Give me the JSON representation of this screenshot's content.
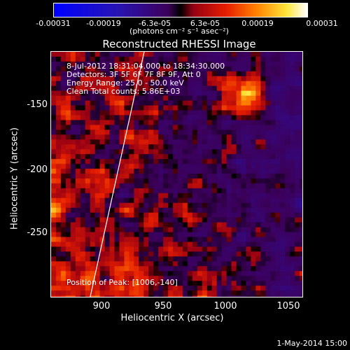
{
  "colorbar": {
    "ticks": [
      "-0.00031",
      "-0.00019",
      "-6.3e-05",
      "6.3e-05",
      "0.00019",
      "0.00031"
    ],
    "unit": "(photons cm⁻² s⁻¹ asec⁻²)"
  },
  "chart_data": {
    "type": "heatmap",
    "title": "Reconstructed RHESSI Image",
    "xlabel": "Heliocentric X (arcsec)",
    "ylabel": "Heliocentric Y (arcsec)",
    "xlim": [
      863,
      1054
    ],
    "ylim": [
      -297,
      -110
    ],
    "x_ticks": [
      "900",
      "950",
      "1000",
      "1050"
    ],
    "y_ticks": [
      "-150",
      "-200",
      "-250"
    ],
    "colorbar_range": [
      -0.00031,
      0.00031
    ],
    "limb_line": [
      [
        893,
        -297
      ],
      [
        934,
        -110
      ]
    ],
    "annotations": {
      "time": "8-Jul-2012 18:31:04.000 to 18:34:30.000",
      "detectors": "Detectors: 3F 5F 6F 7F 8F 9F, Att 0",
      "energy": "Energy Range: 25.0 - 50.0 keV",
      "method": "Clean     Total counts: 5.86E+03",
      "peak": "Position of Peak: [1006,-140]"
    }
  },
  "footer": {
    "date": "1-May-2014 15:00"
  },
  "colors": {
    "background": "#000000",
    "low": "#0000ff",
    "mid": "#400060",
    "high": "#ffffff"
  }
}
